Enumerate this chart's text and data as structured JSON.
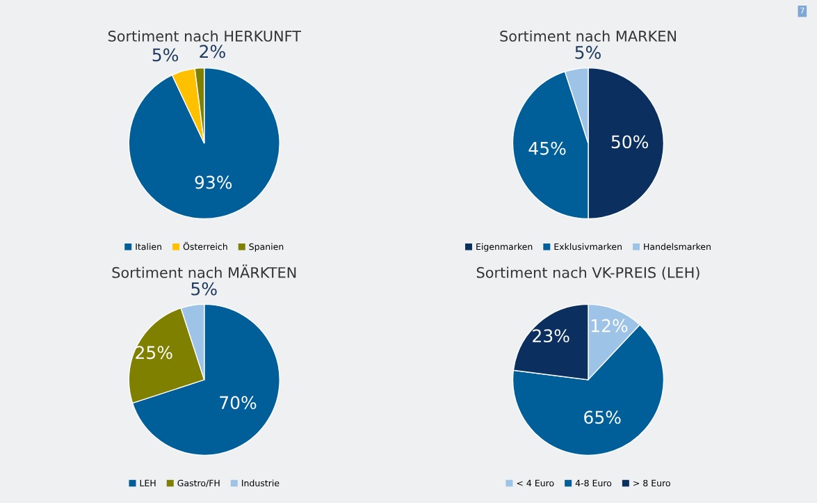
{
  "chart_data": [
    {
      "type": "pie",
      "title": "Sortiment nach HERKUNFT",
      "categories": [
        "Italien",
        "Österreich",
        "Spanien"
      ],
      "values": [
        93,
        5,
        2
      ],
      "value_labels": [
        "93%",
        "5%",
        "2%"
      ],
      "colors": [
        "#005f99",
        "#ffc000",
        "#7f7f00"
      ],
      "legend": "bottom",
      "annotations": [
        "7"
      ]
    },
    {
      "type": "pie",
      "title": "Sortiment nach MARKEN",
      "categories": [
        "Eigenmarken",
        "Exklusivmarken",
        "Handelsmarken"
      ],
      "values": [
        50,
        45,
        5
      ],
      "value_labels": [
        "50%",
        "45%",
        "5%"
      ],
      "colors": [
        "#0b2f5e",
        "#005f99",
        "#9dc3e6"
      ],
      "legend": "bottom"
    },
    {
      "type": "pie",
      "title": "Sortiment nach MÄRKTEN",
      "categories": [
        "LEH",
        "Gastro/FH",
        "Industrie"
      ],
      "values": [
        70,
        25,
        5
      ],
      "value_labels": [
        "70%",
        "25%",
        "5%"
      ],
      "colors": [
        "#005f99",
        "#7f7f00",
        "#9dc3e6"
      ],
      "legend": "bottom"
    },
    {
      "type": "pie",
      "title": "Sortiment nach VK-PREIS (LEH)",
      "categories": [
        "< 4 Euro",
        "4-8 Euro",
        "> 8 Euro"
      ],
      "values": [
        12,
        65,
        23
      ],
      "value_labels": [
        "12%",
        "65%",
        "23%"
      ],
      "colors": [
        "#9dc3e6",
        "#005f99",
        "#0b2f5e"
      ],
      "legend": "bottom"
    }
  ]
}
